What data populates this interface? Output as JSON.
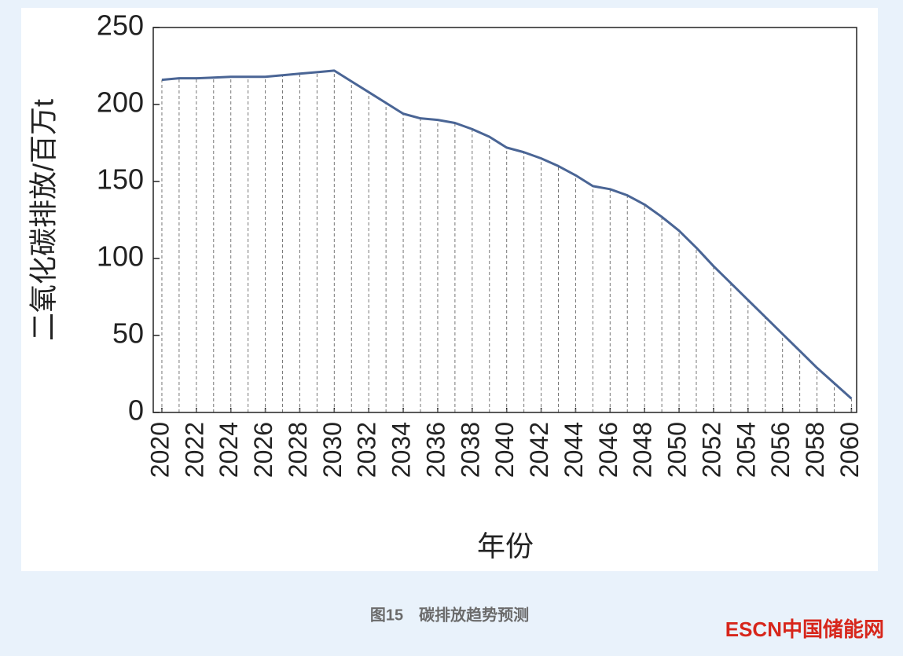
{
  "chart_data": {
    "type": "line",
    "y_label": "二氧化碳排放/百万t",
    "x_label": "年份",
    "x": [
      2020,
      2021,
      2022,
      2023,
      2024,
      2025,
      2026,
      2027,
      2028,
      2029,
      2030,
      2031,
      2032,
      2033,
      2034,
      2035,
      2036,
      2037,
      2038,
      2039,
      2040,
      2041,
      2042,
      2043,
      2044,
      2045,
      2046,
      2047,
      2048,
      2049,
      2050,
      2051,
      2052,
      2053,
      2054,
      2055,
      2056,
      2057,
      2058,
      2059,
      2060
    ],
    "values": [
      216,
      217,
      217,
      217.5,
      218,
      218,
      218,
      219,
      220,
      221,
      222,
      215,
      208,
      201,
      194,
      191,
      190,
      188,
      184,
      179,
      172,
      169,
      165,
      160,
      154,
      147,
      145,
      141,
      135,
      127,
      118,
      107,
      95,
      84,
      73,
      62,
      51,
      40,
      29,
      19,
      9
    ],
    "color": "#4a6595",
    "drop_lines": true,
    "xlim": [
      2019.5,
      2060.3
    ],
    "xticks": [
      2020,
      2022,
      2024,
      2026,
      2028,
      2030,
      2032,
      2034,
      2036,
      2038,
      2040,
      2042,
      2044,
      2046,
      2048,
      2050,
      2052,
      2054,
      2056,
      2058,
      2060
    ],
    "ylim": [
      0,
      250
    ],
    "yticks": [
      0,
      50,
      100,
      150,
      200,
      250
    ]
  },
  "caption": "图15　碳排放趋势预测",
  "logo": "ESCN中国储能网"
}
